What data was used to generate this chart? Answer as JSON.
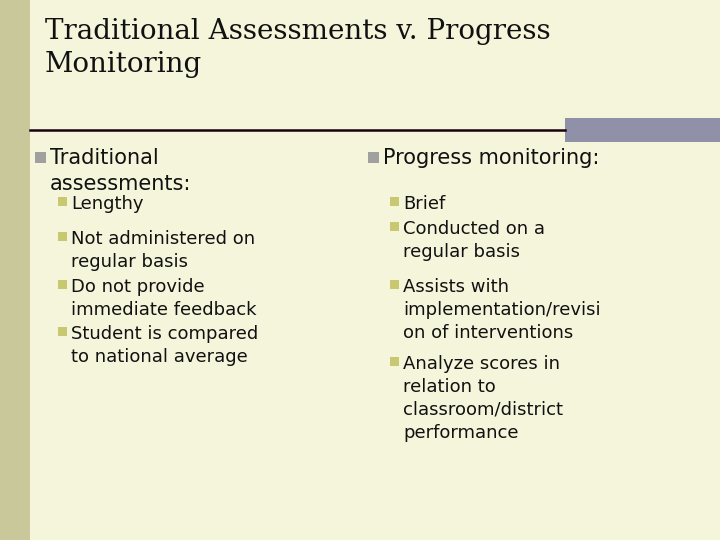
{
  "title": "Traditional Assessments v. Progress\nMonitoring",
  "bg_color": "#f5f5dc",
  "sidebar_color": "#c8c89a",
  "bullet_color_l1": "#a0a0a0",
  "bullet_color_l2": "#c8c870",
  "left_col_header": "Traditional\nassessments:",
  "left_bullets": [
    "Lengthy",
    "Not administered on\nregular basis",
    "Do not provide\nimmediate feedback",
    "Student is compared\nto national average"
  ],
  "right_col_header": "Progress monitoring:",
  "right_bullets": [
    "Brief",
    "Conducted on a\nregular basis",
    "Assists with\nimplementation/revisi\non of interventions",
    "Analyze scores in\nrelation to\nclassroom/district\nperformance"
  ],
  "title_fontsize": 20,
  "header_fontsize": 15,
  "bullet_fontsize": 13,
  "text_color": "#111111",
  "title_color": "#111111",
  "line_color": "#1a0010",
  "accent_color": "#9090a8"
}
